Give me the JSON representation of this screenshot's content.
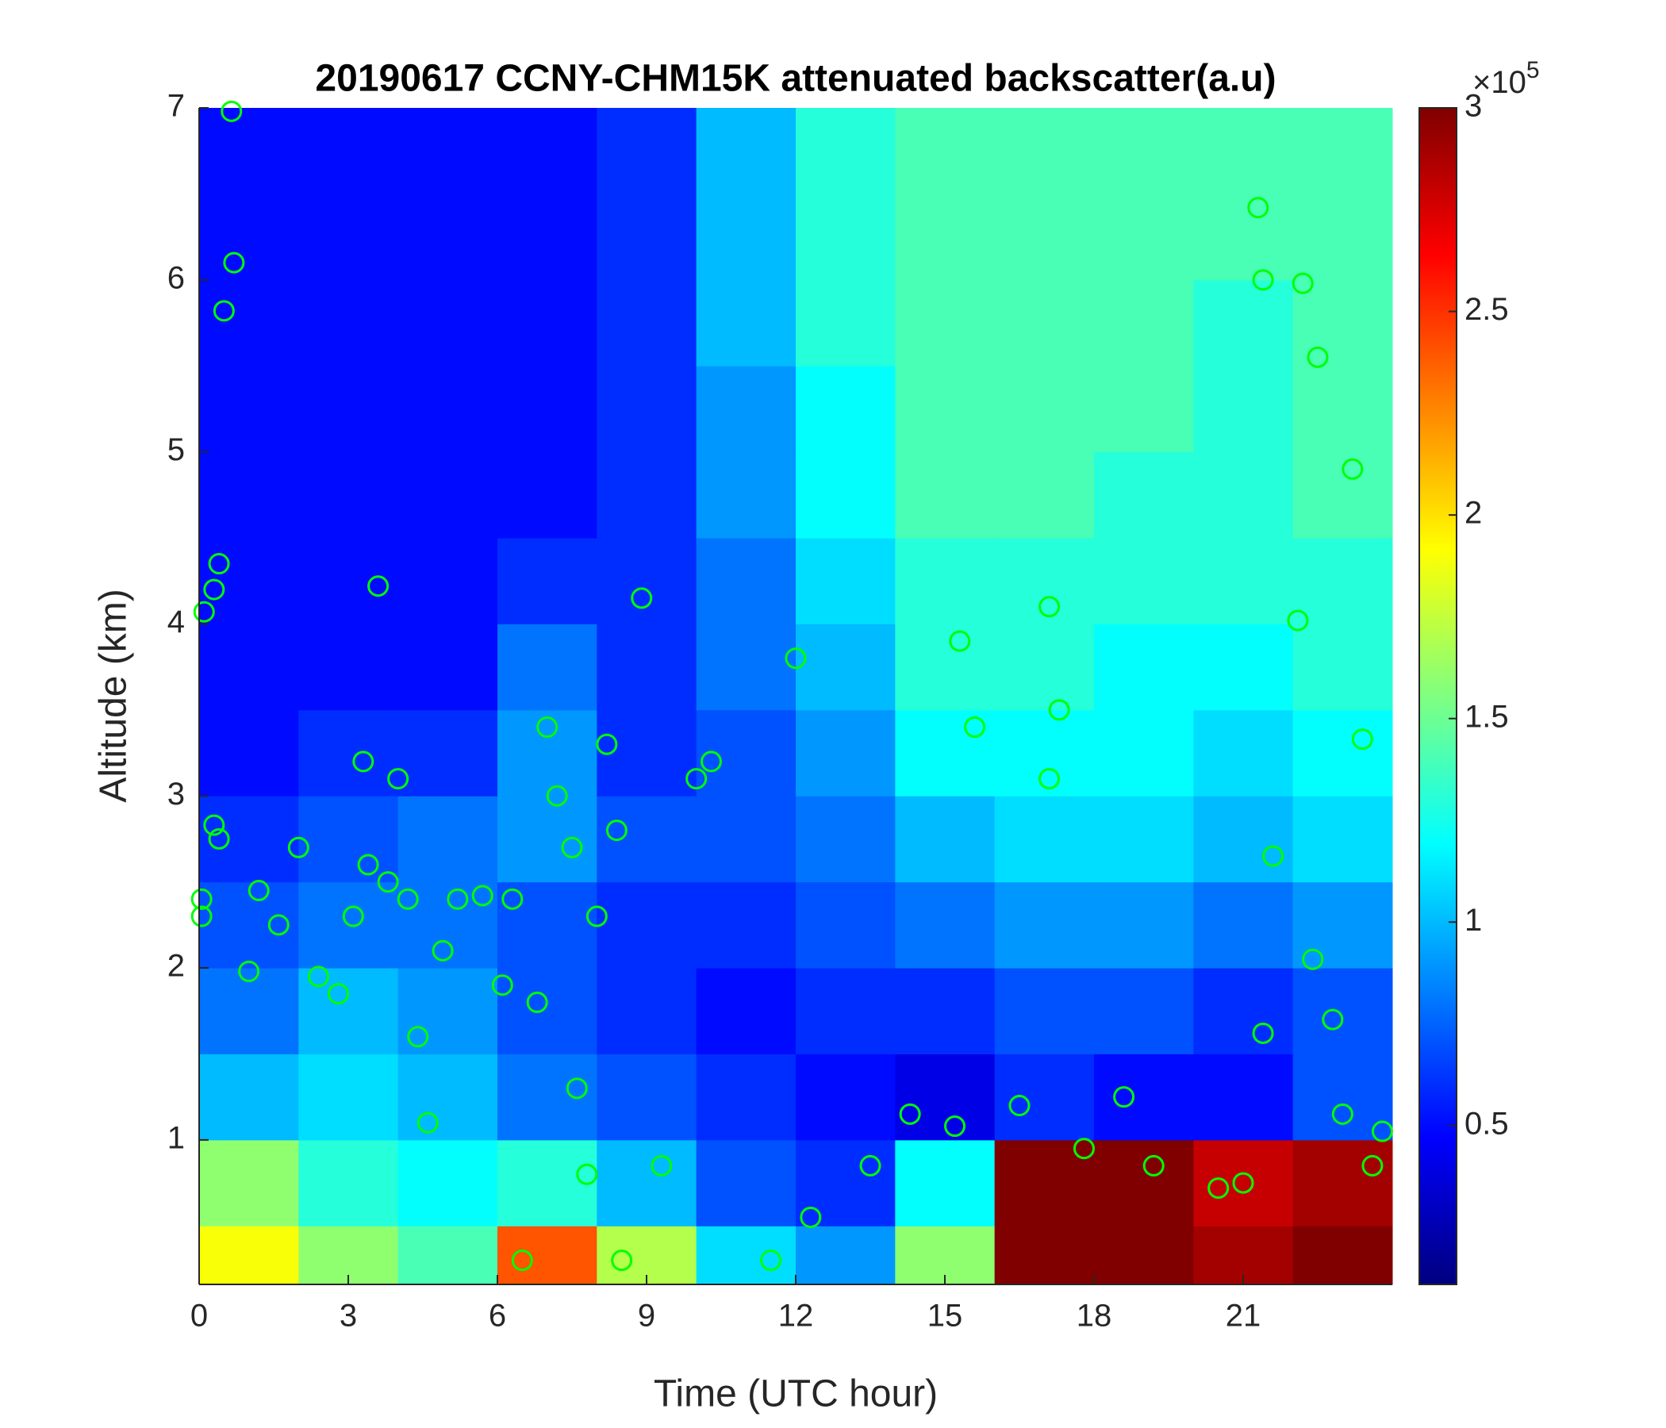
{
  "chart_data": {
    "type": "heatmap",
    "title": "20190617 CCNY-CHM15K attenuated backscatter(a.u)",
    "xlabel": "Time (UTC hour)",
    "ylabel": "Altitude (km)",
    "xlim": [
      0,
      24
    ],
    "ylim": [
      0.16,
      7
    ],
    "xticks": [
      0,
      3,
      6,
      9,
      12,
      15,
      18,
      21
    ],
    "yticks": [
      1,
      2,
      3,
      4,
      5,
      6,
      7
    ],
    "colormap": "jet",
    "clim": [
      0.11,
      3
    ],
    "cticks": [
      0.5,
      1,
      1.5,
      2,
      2.5,
      3
    ],
    "clabel_multiplier": "×10",
    "clabel_exponent": "5",
    "x_edges": [
      0,
      2,
      4,
      6,
      8,
      10,
      12,
      14,
      16,
      18,
      20,
      22,
      24
    ],
    "y_edges": [
      0.16,
      0.5,
      1,
      1.5,
      2,
      2.5,
      3,
      3.5,
      4,
      4.5,
      5,
      5.5,
      6,
      6.5,
      7
    ],
    "z": [
      [
        1.9,
        1.6,
        1.4,
        2.4,
        1.7,
        1.1,
        0.9,
        1.6,
        3,
        3,
        2.9,
        3
      ],
      [
        1.6,
        1.3,
        1.2,
        1.3,
        1.0,
        0.7,
        0.6,
        1.2,
        3,
        3,
        2.8,
        2.9
      ],
      [
        1.0,
        1.1,
        1.0,
        0.8,
        0.7,
        0.6,
        0.5,
        0.4,
        0.6,
        0.5,
        0.5,
        0.7
      ],
      [
        0.8,
        1.0,
        0.9,
        0.7,
        0.6,
        0.5,
        0.6,
        0.6,
        0.7,
        0.7,
        0.6,
        0.7
      ],
      [
        0.7,
        0.8,
        0.8,
        0.7,
        0.6,
        0.6,
        0.7,
        0.8,
        0.9,
        0.9,
        0.8,
        0.9
      ],
      [
        0.6,
        0.7,
        0.8,
        0.9,
        0.7,
        0.7,
        0.8,
        1.0,
        1.1,
        1.1,
        1.0,
        1.1
      ],
      [
        0.5,
        0.6,
        0.6,
        0.9,
        0.6,
        0.7,
        0.9,
        1.2,
        1.2,
        1.2,
        1.1,
        1.2
      ],
      [
        0.5,
        0.5,
        0.5,
        0.8,
        0.6,
        0.8,
        1.0,
        1.3,
        1.3,
        1.2,
        1.2,
        1.3
      ],
      [
        0.5,
        0.5,
        0.5,
        0.6,
        0.6,
        0.8,
        1.1,
        1.3,
        1.3,
        1.3,
        1.3,
        1.3
      ],
      [
        0.5,
        0.5,
        0.5,
        0.5,
        0.6,
        0.9,
        1.2,
        1.4,
        1.4,
        1.3,
        1.3,
        1.4
      ],
      [
        0.5,
        0.5,
        0.5,
        0.5,
        0.6,
        0.9,
        1.2,
        1.4,
        1.4,
        1.4,
        1.3,
        1.4
      ],
      [
        0.5,
        0.5,
        0.5,
        0.5,
        0.6,
        1.0,
        1.3,
        1.4,
        1.4,
        1.4,
        1.3,
        1.4
      ],
      [
        0.5,
        0.5,
        0.5,
        0.5,
        0.6,
        1.0,
        1.3,
        1.4,
        1.4,
        1.4,
        1.4,
        1.4
      ],
      [
        0.5,
        0.5,
        0.5,
        0.5,
        0.6,
        1.0,
        1.3,
        1.4,
        1.4,
        1.4,
        1.4,
        1.4
      ]
    ],
    "overlay": {
      "type": "scatter",
      "marker": "circle",
      "color": "#00ff00",
      "x": [
        0.1,
        0.3,
        0.4,
        0.65,
        0.7,
        0.5,
        0.3,
        0.4,
        0.05,
        0.05,
        1.0,
        1.2,
        1.6,
        2.0,
        2.4,
        2.8,
        3.1,
        3.3,
        3.4,
        3.6,
        3.8,
        4.0,
        4.2,
        4.4,
        4.6,
        4.9,
        5.2,
        5.7,
        6.1,
        6.3,
        6.5,
        6.8,
        7.0,
        7.2,
        7.5,
        7.6,
        7.8,
        8.0,
        8.2,
        8.4,
        8.5,
        8.9,
        9.3,
        10.0,
        10.3,
        11.5,
        12.0,
        12.3,
        13.5,
        14.3,
        15.2,
        15.3,
        15.6,
        16.5,
        17.1,
        17.3,
        17.1,
        17.8,
        18.6,
        19.2,
        20.5,
        21.0,
        21.4,
        21.3,
        21.6,
        22.1,
        22.2,
        22.4,
        22.5,
        22.8,
        23.0,
        23.2,
        23.6,
        23.8,
        23.4,
        21.4
      ],
      "y": [
        4.07,
        4.2,
        4.35,
        6.98,
        6.1,
        5.82,
        2.83,
        2.75,
        2.4,
        2.3,
        1.98,
        2.45,
        2.25,
        2.7,
        1.95,
        1.85,
        2.3,
        3.2,
        2.6,
        4.22,
        2.5,
        3.1,
        2.4,
        1.6,
        1.1,
        2.1,
        2.4,
        2.42,
        1.9,
        2.4,
        0.3,
        1.8,
        3.4,
        3.0,
        2.7,
        1.3,
        0.8,
        2.3,
        3.3,
        2.8,
        0.3,
        4.15,
        0.85,
        3.1,
        3.2,
        0.3,
        3.8,
        0.55,
        0.85,
        1.15,
        1.08,
        3.9,
        3.4,
        1.2,
        4.1,
        3.5,
        3.1,
        0.95,
        1.25,
        0.85,
        0.72,
        0.75,
        6.0,
        6.42,
        2.65,
        4.02,
        5.98,
        2.05,
        5.55,
        1.7,
        1.15,
        4.9,
        0.85,
        1.05,
        3.33,
        1.62
      ]
    }
  }
}
